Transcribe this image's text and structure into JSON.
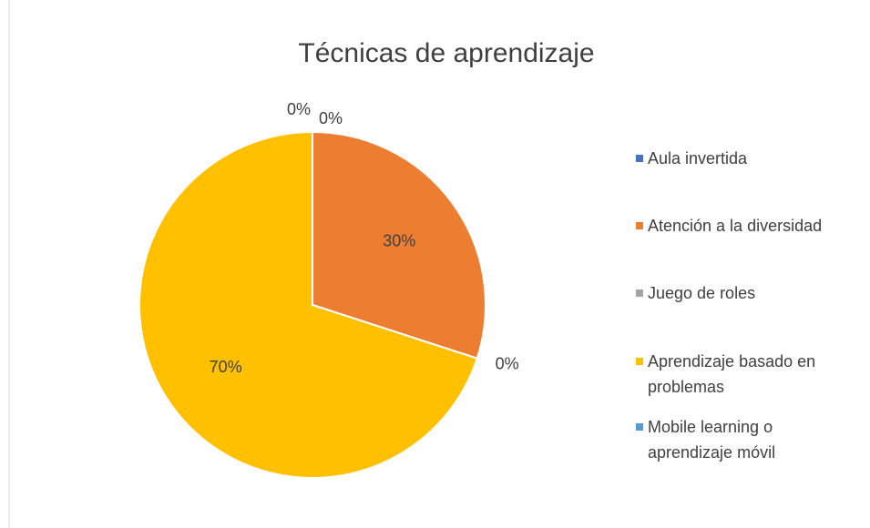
{
  "chart_data": {
    "type": "pie",
    "title": "Técnicas de aprendizaje",
    "categories": [
      "Aula invertida",
      "Atención a la diversidad",
      "Juego de roles",
      "Aprendizaje basado en problemas",
      "Mobile learning o aprendizaje móvil"
    ],
    "values": [
      0,
      30,
      0,
      70,
      0
    ],
    "value_labels": [
      "0%",
      "30%",
      "0%",
      "70%",
      "0%"
    ],
    "colors": [
      "#4472c4",
      "#ed7d31",
      "#a5a5a5",
      "#ffc000",
      "#5b9bd5"
    ],
    "legend": "right"
  }
}
